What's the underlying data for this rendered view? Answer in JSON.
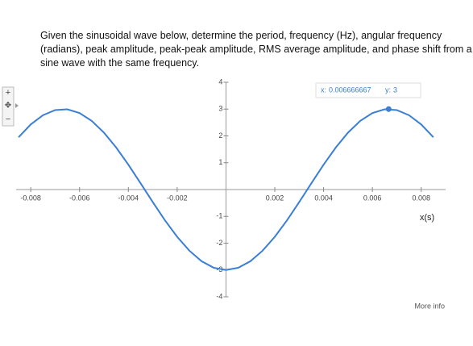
{
  "question": {
    "lines": [
      "Given the sinusoidal wave below, determine the period, frequency (Hz), angular frequency",
      "(radians), peak amplitude, peak-peak amplitude, RMS average amplitude, and phase shift from a",
      "sine wave with the same frequency."
    ]
  },
  "chart_data": {
    "type": "line",
    "x": [
      -0.0085,
      -0.008,
      -0.0075,
      -0.007,
      -0.0065,
      -0.006,
      -0.0055,
      -0.005,
      -0.0045,
      -0.004,
      -0.0035,
      -0.003,
      -0.0025,
      -0.002,
      -0.0015,
      -0.001,
      -0.0005,
      0,
      0.0005,
      0.001,
      0.0015,
      0.002,
      0.0025,
      0.003,
      0.0035,
      0.004,
      0.0045,
      0.005,
      0.0055,
      0.006,
      0.0065,
      0.007,
      0.0075,
      0.008,
      0.0085
    ],
    "values": [
      1.948,
      2.427,
      2.772,
      2.963,
      2.991,
      2.853,
      2.558,
      2.121,
      1.568,
      0.927,
      0.235,
      -0.469,
      -1.148,
      -1.763,
      -2.281,
      -2.673,
      -2.917,
      -3,
      -2.917,
      -2.673,
      -2.281,
      -1.763,
      -1.148,
      -0.469,
      0.235,
      0.927,
      1.568,
      2.121,
      2.558,
      2.853,
      2.991,
      2.963,
      2.772,
      2.427,
      1.948
    ],
    "color": "#3a7fd5",
    "xlim": [
      -0.0086,
      0.009
    ],
    "ylim": [
      -4,
      4
    ],
    "xticks": [
      -0.008,
      -0.006,
      -0.004,
      -0.002,
      0.002,
      0.004,
      0.006,
      0.008
    ],
    "yticks": [
      -4,
      -3,
      -2,
      -1,
      1,
      2,
      3,
      4
    ],
    "x_label": "x(s)",
    "tooltip": {
      "x_label": "x:",
      "x": 0.006666667,
      "y_label": "y:",
      "y": 3
    },
    "link": "More info"
  }
}
